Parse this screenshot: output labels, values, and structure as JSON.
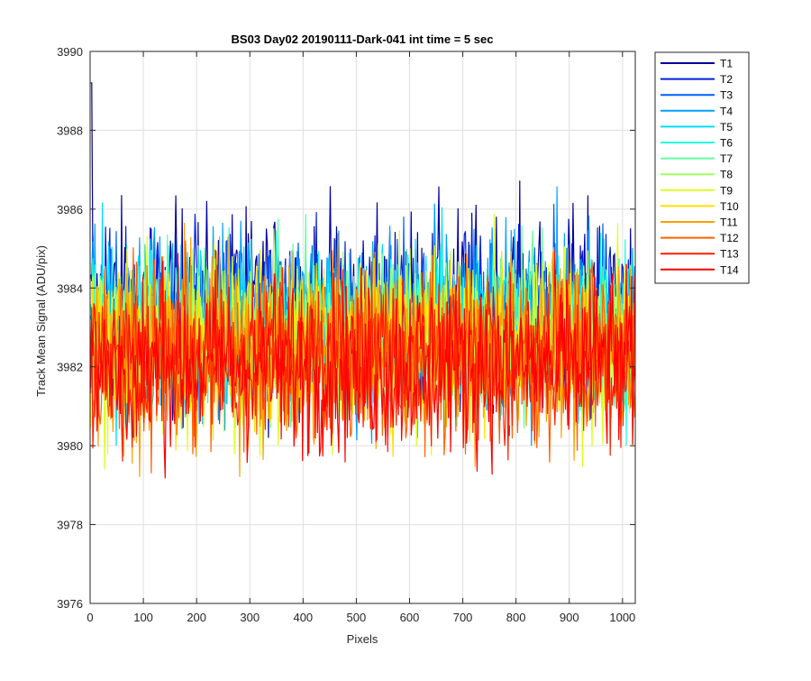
{
  "chart_data": {
    "type": "line",
    "title": "BS03 Day02 20190111-Dark-041 int time = 5 sec",
    "xlabel": "Pixels",
    "ylabel": "Track Mean Signal (ADU/pix)",
    "xlim": [
      0,
      1024
    ],
    "ylim": [
      3976,
      3990
    ],
    "xticks": [
      0,
      100,
      200,
      300,
      400,
      500,
      600,
      700,
      800,
      900,
      1000
    ],
    "yticks": [
      3976,
      3978,
      3980,
      3982,
      3984,
      3986,
      3988,
      3990
    ],
    "grid": true,
    "legend_position": "outside-right",
    "x_range": [
      1,
      1024
    ],
    "series": [
      {
        "name": "T1",
        "color": "#00009f",
        "mean": 3983.4,
        "min": 3980.2,
        "max": 3989.2
      },
      {
        "name": "T2",
        "color": "#0020df",
        "mean": 3983.3,
        "min": 3980.0,
        "max": 3987.3
      },
      {
        "name": "T3",
        "color": "#0060ff",
        "mean": 3983.2,
        "min": 3979.9,
        "max": 3986.9
      },
      {
        "name": "T4",
        "color": "#00a0ff",
        "mean": 3983.1,
        "min": 3978.7,
        "max": 3987.3
      },
      {
        "name": "T5",
        "color": "#00dfff",
        "mean": 3983.0,
        "min": 3980.0,
        "max": 3987.8
      },
      {
        "name": "T6",
        "color": "#20ffdf",
        "mean": 3982.9,
        "min": 3980.0,
        "max": 3987.0
      },
      {
        "name": "T7",
        "color": "#60ffa0",
        "mean": 3982.8,
        "min": 3979.8,
        "max": 3987.0
      },
      {
        "name": "T8",
        "color": "#a0ff60",
        "mean": 3982.7,
        "min": 3979.8,
        "max": 3986.7
      },
      {
        "name": "T9",
        "color": "#dfff20",
        "mean": 3982.6,
        "min": 3979.4,
        "max": 3987.8
      },
      {
        "name": "T10",
        "color": "#ffdf00",
        "mean": 3982.5,
        "min": 3979.1,
        "max": 3986.5
      },
      {
        "name": "T11",
        "color": "#ffa000",
        "mean": 3982.4,
        "min": 3977.9,
        "max": 3986.2
      },
      {
        "name": "T12",
        "color": "#ff6000",
        "mean": 3982.3,
        "min": 3978.0,
        "max": 3986.0
      },
      {
        "name": "T13",
        "color": "#ff2000",
        "mean": 3982.2,
        "min": 3978.6,
        "max": 3985.8
      },
      {
        "name": "T14",
        "color": "#ff0000",
        "mean": 3982.1,
        "min": 3977.6,
        "max": 3985.6
      }
    ]
  }
}
